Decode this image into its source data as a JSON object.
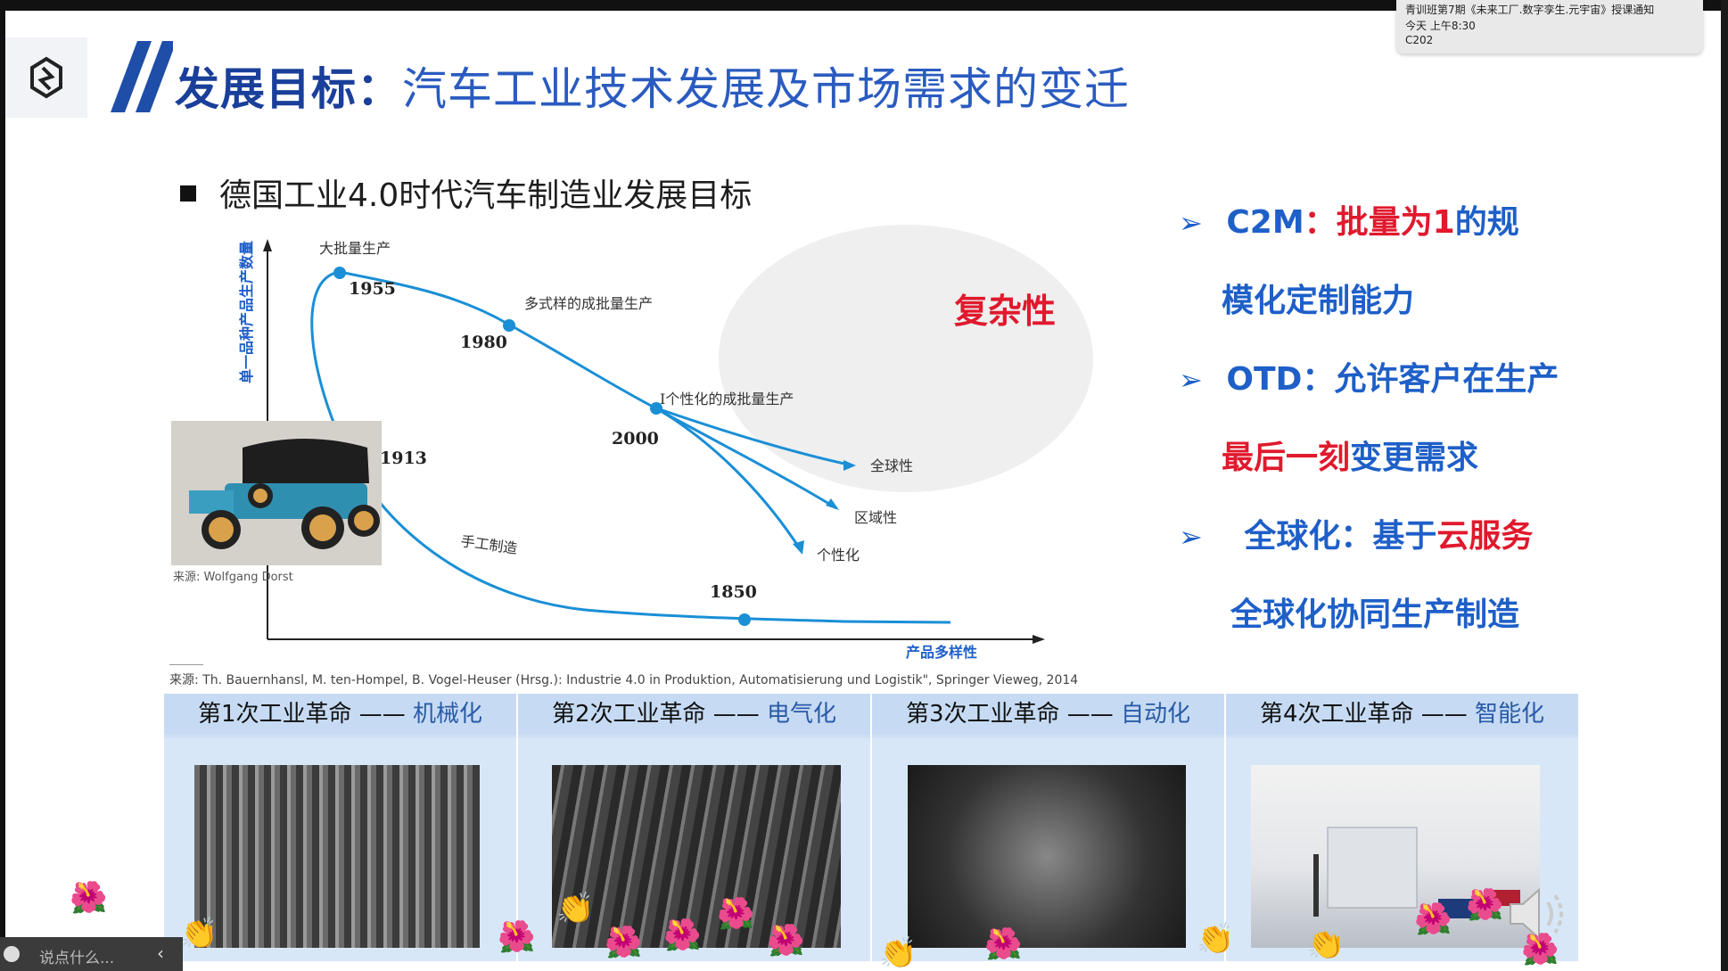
{
  "slide": {
    "title_bold": "发展目标",
    "title_colon": "：",
    "title_rest": "汽车工业技术发展及市场需求的变迁",
    "bullet": "德国工业4.0时代汽车制造业发展目标"
  },
  "chart": {
    "y_axis_label": "单一品种产品生产数量",
    "x_axis_label": "产品多样性",
    "labels": {
      "mass": "大批量生产",
      "multi": "多式样的成批量生产",
      "personal": "I个性化的成批量生产",
      "craft": "手工制造",
      "complexity": "复杂性",
      "global": "全球性",
      "regional": "区域性",
      "individual": "个性化"
    },
    "years": [
      "1955",
      "1980",
      "2000",
      "1913",
      "1850"
    ],
    "car_credit": "来源: Wolfgang Dorst",
    "source": "来源: Th. Bauernhansl, M. ten-Hompel, B. Vogel-Heuser (Hrsg.): Industrie 4.0 in Produktion, Automatisierung und Logistik\", Springer Vieweg, 2014"
  },
  "right_panel": {
    "c2m_key": "C2M",
    "c2m_colon": "：",
    "c2m_red": "批量为1",
    "c2m_rest": "的规",
    "c2m_line2": "模化定制能力",
    "otd_key": "OTD",
    "otd_rest": "：允许客户在生产",
    "otd_red": "最后一刻",
    "otd_line2": "变更需求",
    "glob_key": "全球化",
    "glob_mid": "：基于",
    "glob_red": "云服务",
    "glob_line2": "全球化协同生产制造"
  },
  "revolutions": [
    {
      "head": "第1次工业革命 —— ",
      "kind": "机械化"
    },
    {
      "head": "第2次工业革命 —— ",
      "kind": "电气化"
    },
    {
      "head": "第3次工业革命 —— ",
      "kind": "自动化"
    },
    {
      "head": "第4次工业革命 —— ",
      "kind": "智能化"
    }
  ],
  "notification": {
    "title": "青训班第7期《未来工厂.数字孪生.元宇宙》授课通知",
    "time": "今天 上午8:30",
    "room": "C202"
  },
  "chat": {
    "placeholder": "说点什么..."
  },
  "colors": {
    "title_blue": "#1f4ea8",
    "accent_red": "#e0192d",
    "curve_blue": "#1a8fd6",
    "header_bg": "#c6dbf3"
  }
}
